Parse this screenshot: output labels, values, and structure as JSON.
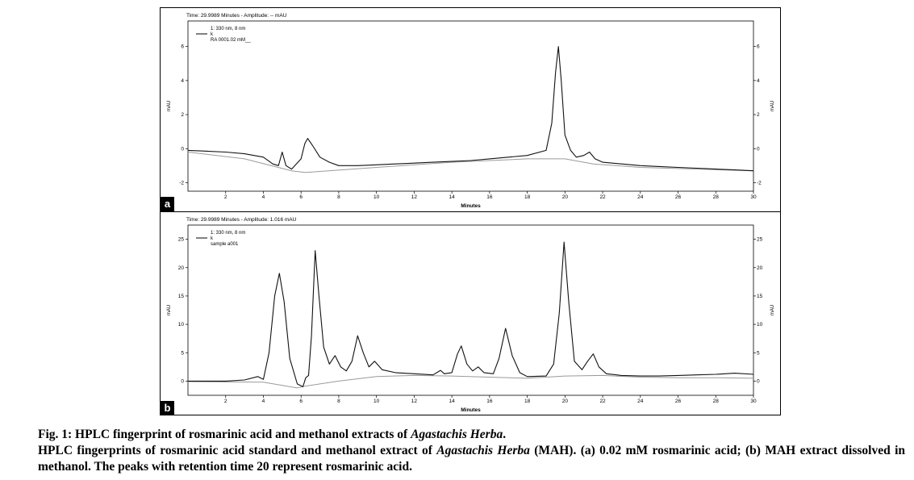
{
  "chart_data": [
    {
      "type": "line",
      "panel_label": "a",
      "header": "Time: 29.9989 Minutes - Amplitude: -- mAU",
      "legend": {
        "line1": "1: 330 nm, 8 nm",
        "line2": "k",
        "line3": "RA 0001.02 mM__"
      },
      "xlabel": "Minutes",
      "ylabel_left": "mAU",
      "ylabel_right": "mAU",
      "xlim": [
        0,
        30
      ],
      "ylim": [
        -2.5,
        7.5
      ],
      "xticks": [
        "2",
        "4",
        "6",
        "8",
        "10",
        "12",
        "14",
        "16",
        "18",
        "20",
        "22",
        "24",
        "26",
        "28",
        "30"
      ],
      "yticks": [
        "-2",
        "0",
        "2",
        "4",
        "6"
      ],
      "series": [
        {
          "name": "k",
          "x": [
            0,
            1,
            2,
            3,
            4,
            4.5,
            4.8,
            5.0,
            5.2,
            5.5,
            6.0,
            6.2,
            6.35,
            6.6,
            7.0,
            7.5,
            8,
            9,
            10,
            11,
            12,
            13,
            14,
            15,
            16,
            17,
            18,
            19,
            19.3,
            19.5,
            19.65,
            19.8,
            20.0,
            20.3,
            20.6,
            21.0,
            21.3,
            21.6,
            22,
            23,
            24,
            25,
            26,
            27,
            28,
            29,
            30
          ],
          "y": [
            -0.1,
            -0.15,
            -0.2,
            -0.3,
            -0.5,
            -0.9,
            -1.0,
            -0.2,
            -1.0,
            -1.2,
            -0.6,
            0.3,
            0.6,
            0.2,
            -0.5,
            -0.8,
            -1.0,
            -1.0,
            -0.95,
            -0.9,
            -0.85,
            -0.8,
            -0.75,
            -0.7,
            -0.6,
            -0.5,
            -0.4,
            -0.1,
            1.5,
            4.5,
            6.0,
            4.0,
            0.8,
            -0.1,
            -0.5,
            -0.4,
            -0.2,
            -0.6,
            -0.8,
            -0.9,
            -1.0,
            -1.05,
            -1.1,
            -1.15,
            -1.2,
            -1.25,
            -1.3
          ]
        },
        {
          "name": "baseline",
          "x": [
            0,
            3,
            5.5,
            6.2,
            10,
            14,
            18,
            20,
            21.5,
            24,
            30
          ],
          "y": [
            -0.2,
            -0.6,
            -1.3,
            -1.4,
            -1.1,
            -0.8,
            -0.6,
            -0.6,
            -0.9,
            -1.1,
            -1.3
          ]
        }
      ]
    },
    {
      "type": "line",
      "panel_label": "b",
      "header": "Time: 29.9989 Minutes - Amplitude: 1.016 mAU",
      "legend": {
        "line1": "1: 330 nm, 8 nm",
        "line2": "k",
        "line3": "sample a001"
      },
      "xlabel": "Minutes",
      "ylabel_left": "mAU",
      "ylabel_right": "mAU",
      "xlim": [
        0,
        30
      ],
      "ylim": [
        -2.5,
        27.5
      ],
      "xticks": [
        "2",
        "4",
        "6",
        "8",
        "10",
        "12",
        "14",
        "16",
        "18",
        "20",
        "22",
        "24",
        "26",
        "28",
        "30"
      ],
      "yticks": [
        "0",
        "5",
        "10",
        "15",
        "20",
        "25"
      ],
      "series": [
        {
          "name": "k",
          "x": [
            0,
            1,
            2,
            3,
            3.7,
            4.0,
            4.3,
            4.6,
            4.85,
            5.1,
            5.4,
            5.8,
            6.1,
            6.25,
            6.4,
            6.55,
            6.75,
            6.95,
            7.2,
            7.5,
            7.8,
            8.1,
            8.4,
            8.7,
            9.0,
            9.3,
            9.6,
            9.9,
            10.3,
            11,
            12,
            13,
            13.4,
            13.6,
            14.0,
            14.3,
            14.5,
            14.8,
            15.1,
            15.4,
            15.7,
            16.2,
            16.5,
            16.85,
            17.2,
            17.6,
            18,
            19,
            19.4,
            19.7,
            19.95,
            20.2,
            20.5,
            20.9,
            21.2,
            21.5,
            21.8,
            22.2,
            23,
            24,
            25,
            26,
            27,
            28,
            29,
            30
          ],
          "y": [
            0,
            0,
            0,
            0.2,
            0.8,
            0.3,
            5,
            15,
            19,
            14,
            4,
            -0.5,
            -1,
            0.6,
            1,
            8,
            23,
            15,
            6,
            3,
            4.5,
            2.5,
            1.8,
            3.5,
            8,
            5,
            2.5,
            3.5,
            2,
            1.5,
            1.3,
            1.1,
            1.9,
            1.3,
            1.5,
            4.8,
            6.2,
            3,
            1.8,
            2.5,
            1.5,
            1.3,
            4,
            9.3,
            4.5,
            1.5,
            0.8,
            0.9,
            3,
            12,
            24.5,
            14,
            3.5,
            2,
            3.5,
            4.8,
            2.5,
            1.3,
            1,
            0.9,
            0.9,
            1,
            1.1,
            1.2,
            1.4,
            1.2
          ]
        },
        {
          "name": "baseline",
          "x": [
            0,
            4,
            5.8,
            6.2,
            8,
            10,
            12,
            14,
            16,
            18,
            20,
            22,
            24,
            26,
            28,
            30
          ],
          "y": [
            -0.1,
            -0.2,
            -1.2,
            -0.9,
            0,
            0.8,
            1.0,
            0.9,
            0.7,
            0.5,
            0.9,
            1.0,
            0.7,
            0.6,
            0.6,
            0.5
          ]
        }
      ]
    }
  ],
  "caption": {
    "title_pre": "Fig. 1: HPLC fingerprint of rosmarinic acid and methanol extracts of ",
    "title_italic": "Agastachis Herba",
    "title_post": ".",
    "body_pre": "HPLC fingerprints of rosmarinic acid standard and methanol extract of ",
    "body_italic": "Agastachis Herba",
    "body_post": " (MAH). (a) 0.02 mM rosmarinic acid; (b) MAH extract dissolved in methanol. The peaks with retention time 20 represent rosmarinic acid."
  }
}
